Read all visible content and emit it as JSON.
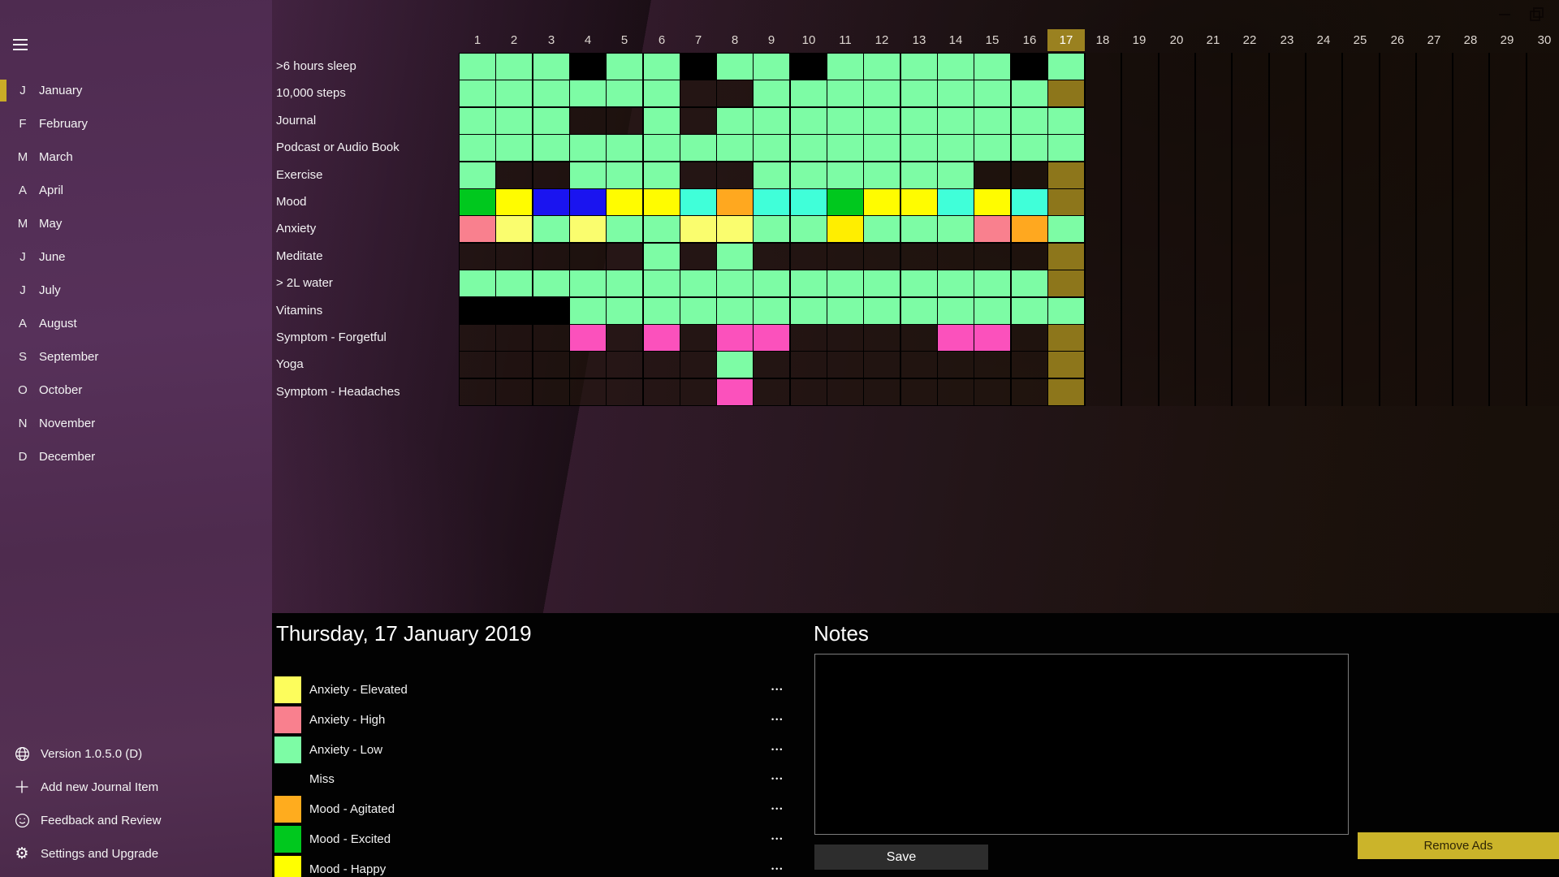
{
  "window_controls": {
    "minimize_icon": "minimize-icon",
    "restore_icon": "restore-icon"
  },
  "sidebar": {
    "accent_color": "#C9AC27",
    "months": [
      {
        "initial": "J",
        "label": "January",
        "selected": true
      },
      {
        "initial": "F",
        "label": "February",
        "selected": false
      },
      {
        "initial": "M",
        "label": "March",
        "selected": false
      },
      {
        "initial": "A",
        "label": "April",
        "selected": false
      },
      {
        "initial": "M",
        "label": "May",
        "selected": false
      },
      {
        "initial": "J",
        "label": "June",
        "selected": false
      },
      {
        "initial": "J",
        "label": "July",
        "selected": false
      },
      {
        "initial": "A",
        "label": "August",
        "selected": false
      },
      {
        "initial": "S",
        "label": "September",
        "selected": false
      },
      {
        "initial": "O",
        "label": "October",
        "selected": false
      },
      {
        "initial": "N",
        "label": "November",
        "selected": false
      },
      {
        "initial": "D",
        "label": "December",
        "selected": false
      }
    ],
    "footer_items": [
      {
        "icon": "globe-icon",
        "label": "Version 1.0.5.0 (D)"
      },
      {
        "icon": "plus-icon",
        "label": "Add new Journal Item"
      },
      {
        "icon": "smiley-icon",
        "label": "Feedback and Review"
      },
      {
        "icon": "gear-icon",
        "label": "Settings and Upgrade"
      }
    ]
  },
  "tracker": {
    "day_numbers": [
      1,
      2,
      3,
      4,
      5,
      6,
      7,
      8,
      9,
      10,
      11,
      12,
      13,
      14,
      15,
      16,
      17,
      18,
      19,
      20,
      21,
      22,
      23,
      24,
      25,
      26,
      27,
      28,
      29,
      30
    ],
    "selected_day": 17,
    "selected_day_header_color": "#9A8120",
    "palette": {
      "G": "#7DFCA5",
      "K": "#000000",
      "E": "rgba(30,19,10,0.62)",
      "P": "#8D761B",
      "XG": "#00C81E",
      "Y": "#FFFC00",
      "B": "#1A14F0",
      "C": "#40FFD9",
      "O": "#FFA81F",
      "AH": "#F9808E",
      "AE": "#FAFD6E",
      "AE2": "#FFEE00",
      "AL": "#7DFCA5",
      "AO": "#FFA81F",
      "S": "#FB51BC",
      "future": "rgba(22,14,8,0.45)"
    },
    "rows": [
      {
        "label": ">6 hours sleep",
        "cells": [
          "G",
          "G",
          "G",
          "K",
          "G",
          "G",
          "K",
          "G",
          "G",
          "K",
          "G",
          "G",
          "G",
          "G",
          "G",
          "K",
          "G"
        ]
      },
      {
        "label": "10,000 steps",
        "cells": [
          "G",
          "G",
          "G",
          "G",
          "G",
          "G",
          "E",
          "E",
          "G",
          "G",
          "G",
          "G",
          "G",
          "G",
          "G",
          "G",
          "P"
        ]
      },
      {
        "label": "Journal",
        "cells": [
          "G",
          "G",
          "G",
          "E",
          "E",
          "G",
          "E",
          "G",
          "G",
          "G",
          "G",
          "G",
          "G",
          "G",
          "G",
          "G",
          "G"
        ]
      },
      {
        "label": "Podcast or Audio Book",
        "cells": [
          "G",
          "G",
          "G",
          "G",
          "G",
          "G",
          "G",
          "G",
          "G",
          "G",
          "G",
          "G",
          "G",
          "G",
          "G",
          "G",
          "G"
        ]
      },
      {
        "label": "Exercise",
        "cells": [
          "G",
          "E",
          "E",
          "G",
          "G",
          "G",
          "E",
          "E",
          "G",
          "G",
          "G",
          "G",
          "G",
          "G",
          "E",
          "E",
          "P"
        ]
      },
      {
        "label": "Mood",
        "cells": [
          "XG",
          "Y",
          "B",
          "B",
          "Y",
          "Y",
          "C",
          "O",
          "C",
          "C",
          "XG",
          "Y",
          "Y",
          "C",
          "Y",
          "C",
          "P"
        ]
      },
      {
        "label": "Anxiety",
        "cells": [
          "AH",
          "AE",
          "AL",
          "AE",
          "AL",
          "AL",
          "AE",
          "AE",
          "AL",
          "AL",
          "AE2",
          "AL",
          "AL",
          "AL",
          "AH",
          "AO",
          "AL"
        ]
      },
      {
        "label": "Meditate",
        "cells": [
          "E",
          "E",
          "E",
          "E",
          "E",
          "G",
          "E",
          "G",
          "E",
          "E",
          "E",
          "E",
          "E",
          "E",
          "E",
          "E",
          "P"
        ]
      },
      {
        "label": "> 2L water",
        "cells": [
          "G",
          "G",
          "G",
          "G",
          "G",
          "G",
          "G",
          "G",
          "G",
          "G",
          "G",
          "G",
          "G",
          "G",
          "G",
          "G",
          "P"
        ]
      },
      {
        "label": "Vitamins",
        "cells": [
          "K",
          "K",
          "K",
          "G",
          "G",
          "G",
          "G",
          "G",
          "G",
          "G",
          "G",
          "G",
          "G",
          "G",
          "G",
          "G",
          "G"
        ]
      },
      {
        "label": "Symptom - Forgetful",
        "cells": [
          "E",
          "E",
          "E",
          "S",
          "E",
          "S",
          "E",
          "S",
          "S",
          "E",
          "E",
          "E",
          "E",
          "S",
          "S",
          "E",
          "P"
        ]
      },
      {
        "label": "Yoga",
        "cells": [
          "E",
          "E",
          "E",
          "E",
          "E",
          "E",
          "E",
          "G",
          "E",
          "E",
          "E",
          "E",
          "E",
          "E",
          "E",
          "E",
          "P"
        ]
      },
      {
        "label": "Symptom - Headaches",
        "cells": [
          "E",
          "E",
          "E",
          "E",
          "E",
          "E",
          "E",
          "S",
          "E",
          "E",
          "E",
          "E",
          "E",
          "E",
          "E",
          "E",
          "P"
        ]
      }
    ]
  },
  "detail_panel": {
    "date_title": "Thursday, 17 January 2019",
    "more_label": "•••",
    "legend": [
      {
        "label": "Anxiety - Elevated",
        "color": "#FDFD5C"
      },
      {
        "label": "Anxiety - High",
        "color": "#F9808E"
      },
      {
        "label": "Anxiety - Low",
        "color": "#7DFCA5"
      },
      {
        "label": "Miss",
        "color": null
      },
      {
        "label": "Mood - Agitated",
        "color": "#FFAC1E"
      },
      {
        "label": "Mood - Excited",
        "color": "#00C81E"
      },
      {
        "label": "Mood - Happy",
        "color": "#FFFF00"
      }
    ]
  },
  "notes": {
    "title": "Notes",
    "value": "",
    "save_label": "Save"
  },
  "ads": {
    "remove_label": "Remove Ads"
  }
}
